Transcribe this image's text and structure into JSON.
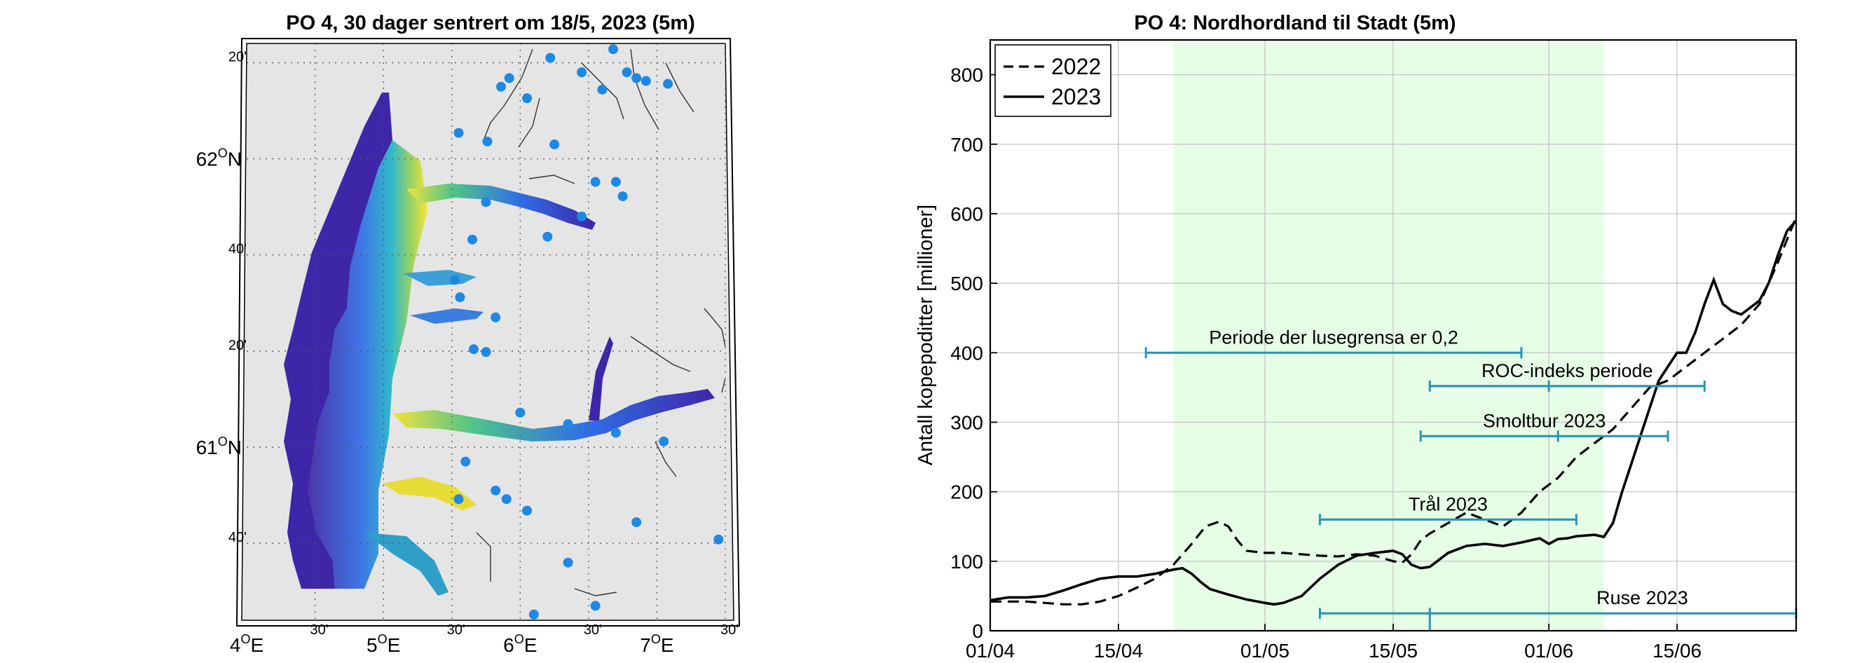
{
  "chart_data": [
    {
      "type": "map",
      "title": "PO 4, 30 dager sentrert om 18/5, 2023 (5m)",
      "lon_ticks": [
        {
          "value": 4.0,
          "main": "4",
          "sup": "O",
          "tail": "E"
        },
        {
          "value": 4.5,
          "main": "30'",
          "sup": "",
          "tail": ""
        },
        {
          "value": 5.0,
          "main": "5",
          "sup": "O",
          "tail": "E"
        },
        {
          "value": 5.5,
          "main": "30'",
          "sup": "",
          "tail": ""
        },
        {
          "value": 6.0,
          "main": "6",
          "sup": "O",
          "tail": "E"
        },
        {
          "value": 6.5,
          "main": "30'",
          "sup": "",
          "tail": ""
        },
        {
          "value": 7.0,
          "main": "7",
          "sup": "O",
          "tail": "E"
        },
        {
          "value": 7.5,
          "main": "30'",
          "sup": "",
          "tail": ""
        }
      ],
      "lat_ticks": [
        {
          "value": 62.333,
          "main": "20'",
          "sup": "",
          "tail": ""
        },
        {
          "value": 62.0,
          "main": "62",
          "sup": "O",
          "tail": "N"
        },
        {
          "value": 61.667,
          "main": "40'",
          "sup": "",
          "tail": ""
        },
        {
          "value": 61.333,
          "main": "20'",
          "sup": "",
          "tail": ""
        },
        {
          "value": 61.0,
          "main": "61",
          "sup": "O",
          "tail": "N"
        },
        {
          "value": 60.667,
          "main": "40'",
          "sup": "",
          "tail": ""
        }
      ],
      "lon_range": [
        4.0,
        7.5
      ],
      "lat_range": [
        60.4,
        62.4
      ],
      "river_points_count": 40
    },
    {
      "type": "line",
      "title": "PO 4: Nordhordland til Stadt (5m)",
      "ylabel": "Antall kopepoditter [millioner]",
      "xlabel": "",
      "x_tick_labels": [
        "01/04",
        "15/04",
        "01/05",
        "15/05",
        "01/06",
        "15/06"
      ],
      "x_tick_days": [
        0,
        14,
        30,
        44,
        61,
        75
      ],
      "xlim": [
        0,
        88
      ],
      "ylim": [
        0,
        850
      ],
      "y_ticks": [
        0,
        100,
        200,
        300,
        400,
        500,
        600,
        700,
        800
      ],
      "grid": true,
      "legend": "top-left",
      "shaded_period": {
        "start_day": 20,
        "end_day": 67,
        "color": "#e6fde6"
      },
      "series": [
        {
          "name": "2022",
          "style": "dashed",
          "x": [
            0,
            2,
            4,
            6,
            8,
            10,
            12,
            14,
            16,
            18,
            20,
            22,
            23.5,
            25,
            26,
            27,
            28,
            30,
            32,
            34,
            36,
            38,
            40,
            42,
            44,
            45,
            46,
            47,
            48,
            50,
            52,
            54,
            56,
            58,
            60,
            62,
            64,
            66,
            68,
            70,
            72,
            74,
            76,
            78,
            80,
            82,
            84,
            86,
            88
          ],
          "values": [
            42,
            42,
            42,
            40,
            38,
            38,
            42,
            50,
            62,
            75,
            95,
            125,
            150,
            157,
            150,
            130,
            115,
            112,
            112,
            110,
            108,
            107,
            110,
            108,
            100,
            98,
            110,
            130,
            140,
            155,
            170,
            160,
            150,
            170,
            200,
            220,
            250,
            270,
            290,
            320,
            350,
            360,
            380,
            400,
            420,
            440,
            470,
            530,
            595
          ]
        },
        {
          "name": "2023",
          "style": "solid",
          "x": [
            0,
            2,
            4,
            6,
            8,
            10,
            12,
            14,
            16,
            18,
            20,
            21,
            22,
            23,
            24,
            26,
            28,
            30,
            31,
            32,
            34,
            36,
            38,
            40,
            42,
            44,
            45,
            46,
            47,
            48,
            50,
            52,
            54,
            56,
            58,
            60,
            61,
            62,
            63,
            64,
            66,
            67,
            68,
            69,
            70,
            71,
            72,
            73,
            74,
            75,
            76,
            77,
            78,
            79,
            80,
            81,
            82,
            83,
            84,
            85,
            86,
            87,
            88
          ],
          "values": [
            44,
            48,
            48,
            50,
            58,
            67,
            75,
            78,
            78,
            82,
            88,
            90,
            82,
            70,
            60,
            52,
            45,
            40,
            38,
            40,
            50,
            75,
            95,
            108,
            112,
            115,
            110,
            95,
            90,
            92,
            112,
            122,
            125,
            122,
            127,
            133,
            125,
            132,
            133,
            136,
            138,
            135,
            155,
            200,
            240,
            280,
            320,
            360,
            380,
            400,
            400,
            430,
            470,
            505,
            470,
            460,
            455,
            465,
            475,
            500,
            540,
            575,
            590
          ]
        }
      ],
      "intervals": [
        {
          "label": "Periode der lusegrensa er 0,2",
          "start_day": 17,
          "end_day": 58,
          "y": 400,
          "mid_tick_day": null
        },
        {
          "label": "ROC-indeks periode",
          "start_day": 48,
          "end_day": 78,
          "y": 352,
          "mid_tick_day": 61
        },
        {
          "label": "Smoltbur 2023",
          "start_day": 47,
          "end_day": 74,
          "y": 280,
          "mid_tick_day": 62
        },
        {
          "label": "Trål 2023",
          "start_day": 36,
          "end_day": 64,
          "y": 160,
          "mid_tick_day": null
        },
        {
          "label": "Ruse 2023",
          "start_day": 36,
          "end_day": 88,
          "y": 25,
          "mid_tick_day": 48
        }
      ]
    }
  ],
  "colors": {
    "shade": "#e6fde6",
    "interval": "#2b94b4",
    "dot": "#1e88e5",
    "land": "#e5e5e5",
    "grid": "#c8c8c8",
    "sea_low": "#3e26a8",
    "sea_mid": "#1ac7c2",
    "sea_high": "#f9e629"
  }
}
